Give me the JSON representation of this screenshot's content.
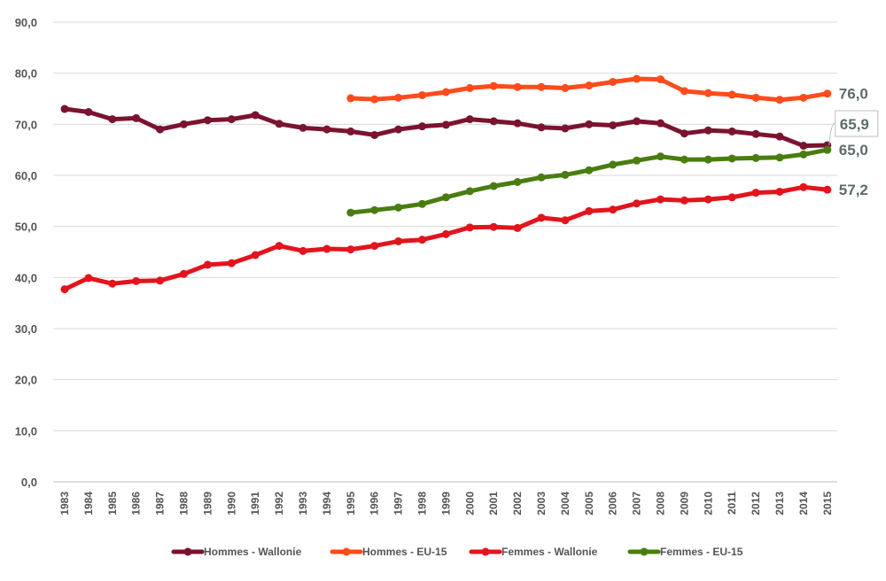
{
  "chart_data": {
    "type": "line",
    "title": "",
    "xlabel": "",
    "ylabel": "",
    "ylim": [
      0,
      90
    ],
    "y_ticks": [
      "0,0",
      "10,0",
      "20,0",
      "30,0",
      "40,0",
      "50,0",
      "60,0",
      "70,0",
      "80,0",
      "90,0"
    ],
    "categories": [
      "1983",
      "1984",
      "1985",
      "1986",
      "1987",
      "1988",
      "1989",
      "1990",
      "1991",
      "1992",
      "1993",
      "1994",
      "1995",
      "1996",
      "1997",
      "1998",
      "1999",
      "2000",
      "2001",
      "2002",
      "2003",
      "2004",
      "2005",
      "2006",
      "2007",
      "2008",
      "2009",
      "2010",
      "2011",
      "2012",
      "2013",
      "2014",
      "2015"
    ],
    "grid": "horizontal",
    "legend_position": "bottom",
    "series": [
      {
        "name": "Hommes - Wallonie",
        "color": "#7b1330",
        "values": [
          73.0,
          72.4,
          71.0,
          71.2,
          69.0,
          70.0,
          70.8,
          71.0,
          71.8,
          70.1,
          69.3,
          69.0,
          68.6,
          67.9,
          69.0,
          69.6,
          69.9,
          71.0,
          70.6,
          70.2,
          69.4,
          69.2,
          70.0,
          69.8,
          70.6,
          70.2,
          68.2,
          68.8,
          68.6,
          68.1,
          67.6,
          65.8,
          65.9
        ],
        "end_label": "65,9"
      },
      {
        "name": "Hommes - EU-15",
        "color": "#ff4b1c",
        "values": [
          null,
          null,
          null,
          null,
          null,
          null,
          null,
          null,
          null,
          null,
          null,
          null,
          75.1,
          74.9,
          75.2,
          75.7,
          76.3,
          77.1,
          77.5,
          77.3,
          77.3,
          77.1,
          77.6,
          78.3,
          78.9,
          78.8,
          76.5,
          76.1,
          75.8,
          75.2,
          74.8,
          75.2,
          76.0
        ],
        "end_label": "76,0"
      },
      {
        "name": "Femmes - Wallonie",
        "color": "#e3141c",
        "values": [
          37.7,
          39.9,
          38.8,
          39.3,
          39.4,
          40.7,
          42.5,
          42.8,
          44.4,
          46.2,
          45.2,
          45.6,
          45.5,
          46.2,
          47.1,
          47.4,
          48.5,
          49.8,
          49.9,
          49.7,
          51.7,
          51.2,
          53.0,
          53.3,
          54.5,
          55.3,
          55.1,
          55.3,
          55.7,
          56.6,
          56.8,
          57.7,
          57.2
        ],
        "end_label": "57,2"
      },
      {
        "name": "Femmes - EU-15",
        "color": "#4a7d10",
        "values": [
          null,
          null,
          null,
          null,
          null,
          null,
          null,
          null,
          null,
          null,
          null,
          null,
          52.7,
          53.2,
          53.7,
          54.4,
          55.7,
          56.9,
          57.9,
          58.7,
          59.6,
          60.1,
          61.0,
          62.1,
          62.9,
          63.7,
          63.1,
          63.1,
          63.3,
          63.4,
          63.5,
          64.1,
          65.0
        ],
        "end_label": "65,0"
      }
    ]
  }
}
